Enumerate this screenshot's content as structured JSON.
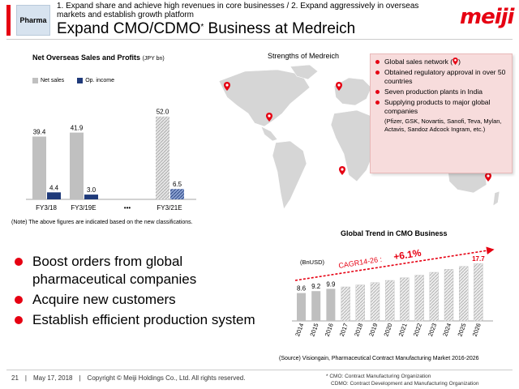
{
  "header": {
    "section_tag": "Pharma",
    "subtitle": "1. Expand share and achieve high revenues in core businesses / 2. Expand aggressively in overseas markets and establish growth platform",
    "title": "Expand CMO/CDMO",
    "title_mark": "*",
    "title_suffix": " Business at Medreich",
    "logo": "meiji",
    "brand_color": "#e60012"
  },
  "sales_chart": {
    "title": "Net Overseas Sales and Profits",
    "unit": "(JPY bn)",
    "chart_data": {
      "type": "bar",
      "categories": [
        "FY3/18",
        "FY3/19E",
        "•••",
        "FY3/21E"
      ],
      "series": [
        {
          "name": "Net sales",
          "values": [
            39.4,
            41.9,
            null,
            52.0
          ],
          "labels": [
            "39.4",
            "41.9",
            "",
            "52.0"
          ],
          "color": "#c0c0c0"
        },
        {
          "name": "Op. income",
          "values": [
            4.4,
            3.0,
            null,
            6.5
          ],
          "labels": [
            "4.4",
            "3.0",
            "",
            "6.5"
          ],
          "color": "#1f3a7a"
        }
      ],
      "ylim": [
        0,
        60
      ]
    },
    "note": "(Note) The above figures are indicated based on the new classifications."
  },
  "bullets": [
    "Boost orders from global pharmaceutical companies",
    "Acquire new customers",
    "Establish efficient production system"
  ],
  "strengths": {
    "label": "Strengths of Medreich",
    "items": [
      "Global sales network (",
      "Obtained regulatory approval in over 50 countries",
      "Seven production plants in India",
      "Supplying products to major global companies"
    ],
    "network_suffix": ")",
    "companies": "(Pfizer, GSK, Novartis, Sanofi, Teva, Mylan, Actavis, Sandoz Adcock Ingram, etc.)"
  },
  "cmo_chart": {
    "title": "Global Trend in CMO Business",
    "unit": "(BnUSD)",
    "cagr_label": "CAGR14-26 :",
    "cagr_value": "+6.1%",
    "chart_data": {
      "type": "bar",
      "categories": [
        "2014",
        "2015",
        "2016",
        "2017",
        "2018",
        "2019",
        "2020",
        "2021",
        "2022",
        "2023",
        "2024",
        "2025",
        "2026"
      ],
      "values": [
        8.6,
        9.2,
        9.9,
        10.5,
        11.1,
        11.8,
        12.5,
        13.3,
        14.1,
        15.0,
        15.9,
        16.8,
        17.7
      ],
      "labels": [
        "8.6",
        "9.2",
        "9.9",
        "",
        "",
        "",
        "",
        "",
        "",
        "",
        "",
        "",
        "17.7"
      ],
      "ylim": [
        0,
        19
      ]
    },
    "source": "(Source) Visiongain, Pharmaceutical Contract Manufacturing Market 2016-2026"
  },
  "footer": {
    "page": "21",
    "date": "May 17, 2018",
    "copyright": "Copyright © Meiji Holdings Co., Ltd. All rights reserved.",
    "footnote1": "* CMO: Contract Manufacturing Organization",
    "footnote2": "CDMO: Contract Development and Manufacturing Organization"
  },
  "map": {
    "pins": [
      "pin-icon",
      "pin-icon",
      "pin-icon",
      "pin-icon",
      "pin-icon",
      "pin-icon",
      "pin-icon",
      "pin-icon",
      "pin-icon",
      "pin-icon"
    ]
  }
}
